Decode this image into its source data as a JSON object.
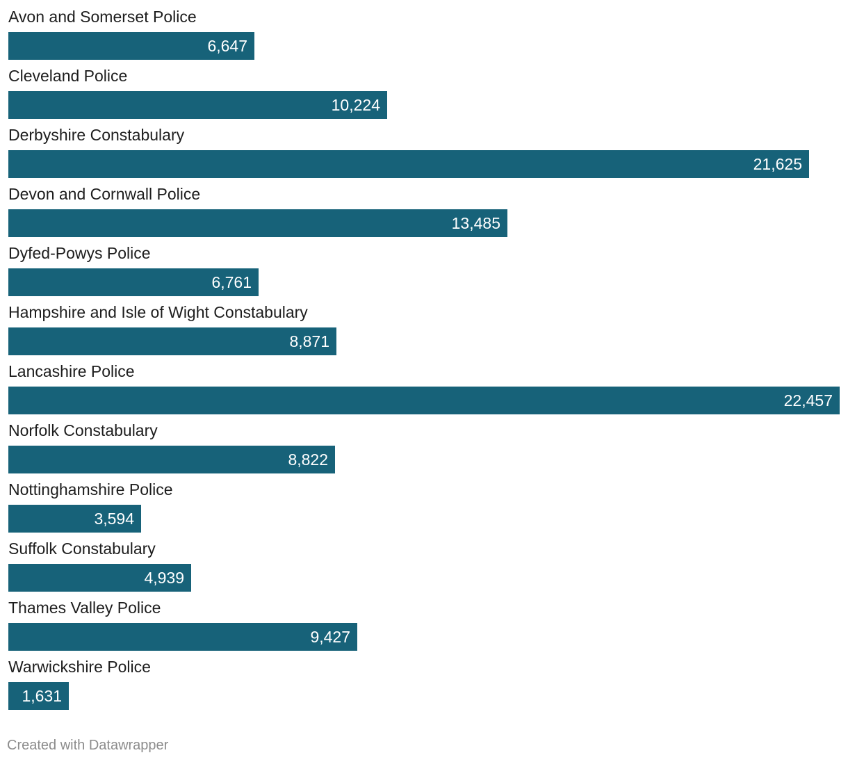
{
  "chart_data": {
    "type": "bar",
    "orientation": "horizontal",
    "title": "",
    "categories": [
      "Avon and Somerset Police",
      "Cleveland Police",
      "Derbyshire Constabulary",
      "Devon and Cornwall Police",
      "Dyfed-Powys Police",
      "Hampshire and Isle of Wight Constabulary",
      "Lancashire Police",
      "Norfolk Constabulary",
      "Nottinghamshire Police",
      "Suffolk Constabulary",
      "Thames Valley Police",
      "Warwickshire Police"
    ],
    "values": [
      6647,
      10224,
      21625,
      13485,
      6761,
      8871,
      22457,
      8822,
      3594,
      4939,
      9427,
      1631
    ],
    "value_labels": [
      "6,647",
      "10,224",
      "21,625",
      "13,485",
      "6,761",
      "8,871",
      "22,457",
      "8,822",
      "3,594",
      "4,939",
      "9,427",
      "1,631"
    ],
    "xlim": [
      0,
      22457
    ],
    "grid": false,
    "legend": "none",
    "bar_color": "#176279"
  },
  "credit": "Created with Datawrapper"
}
